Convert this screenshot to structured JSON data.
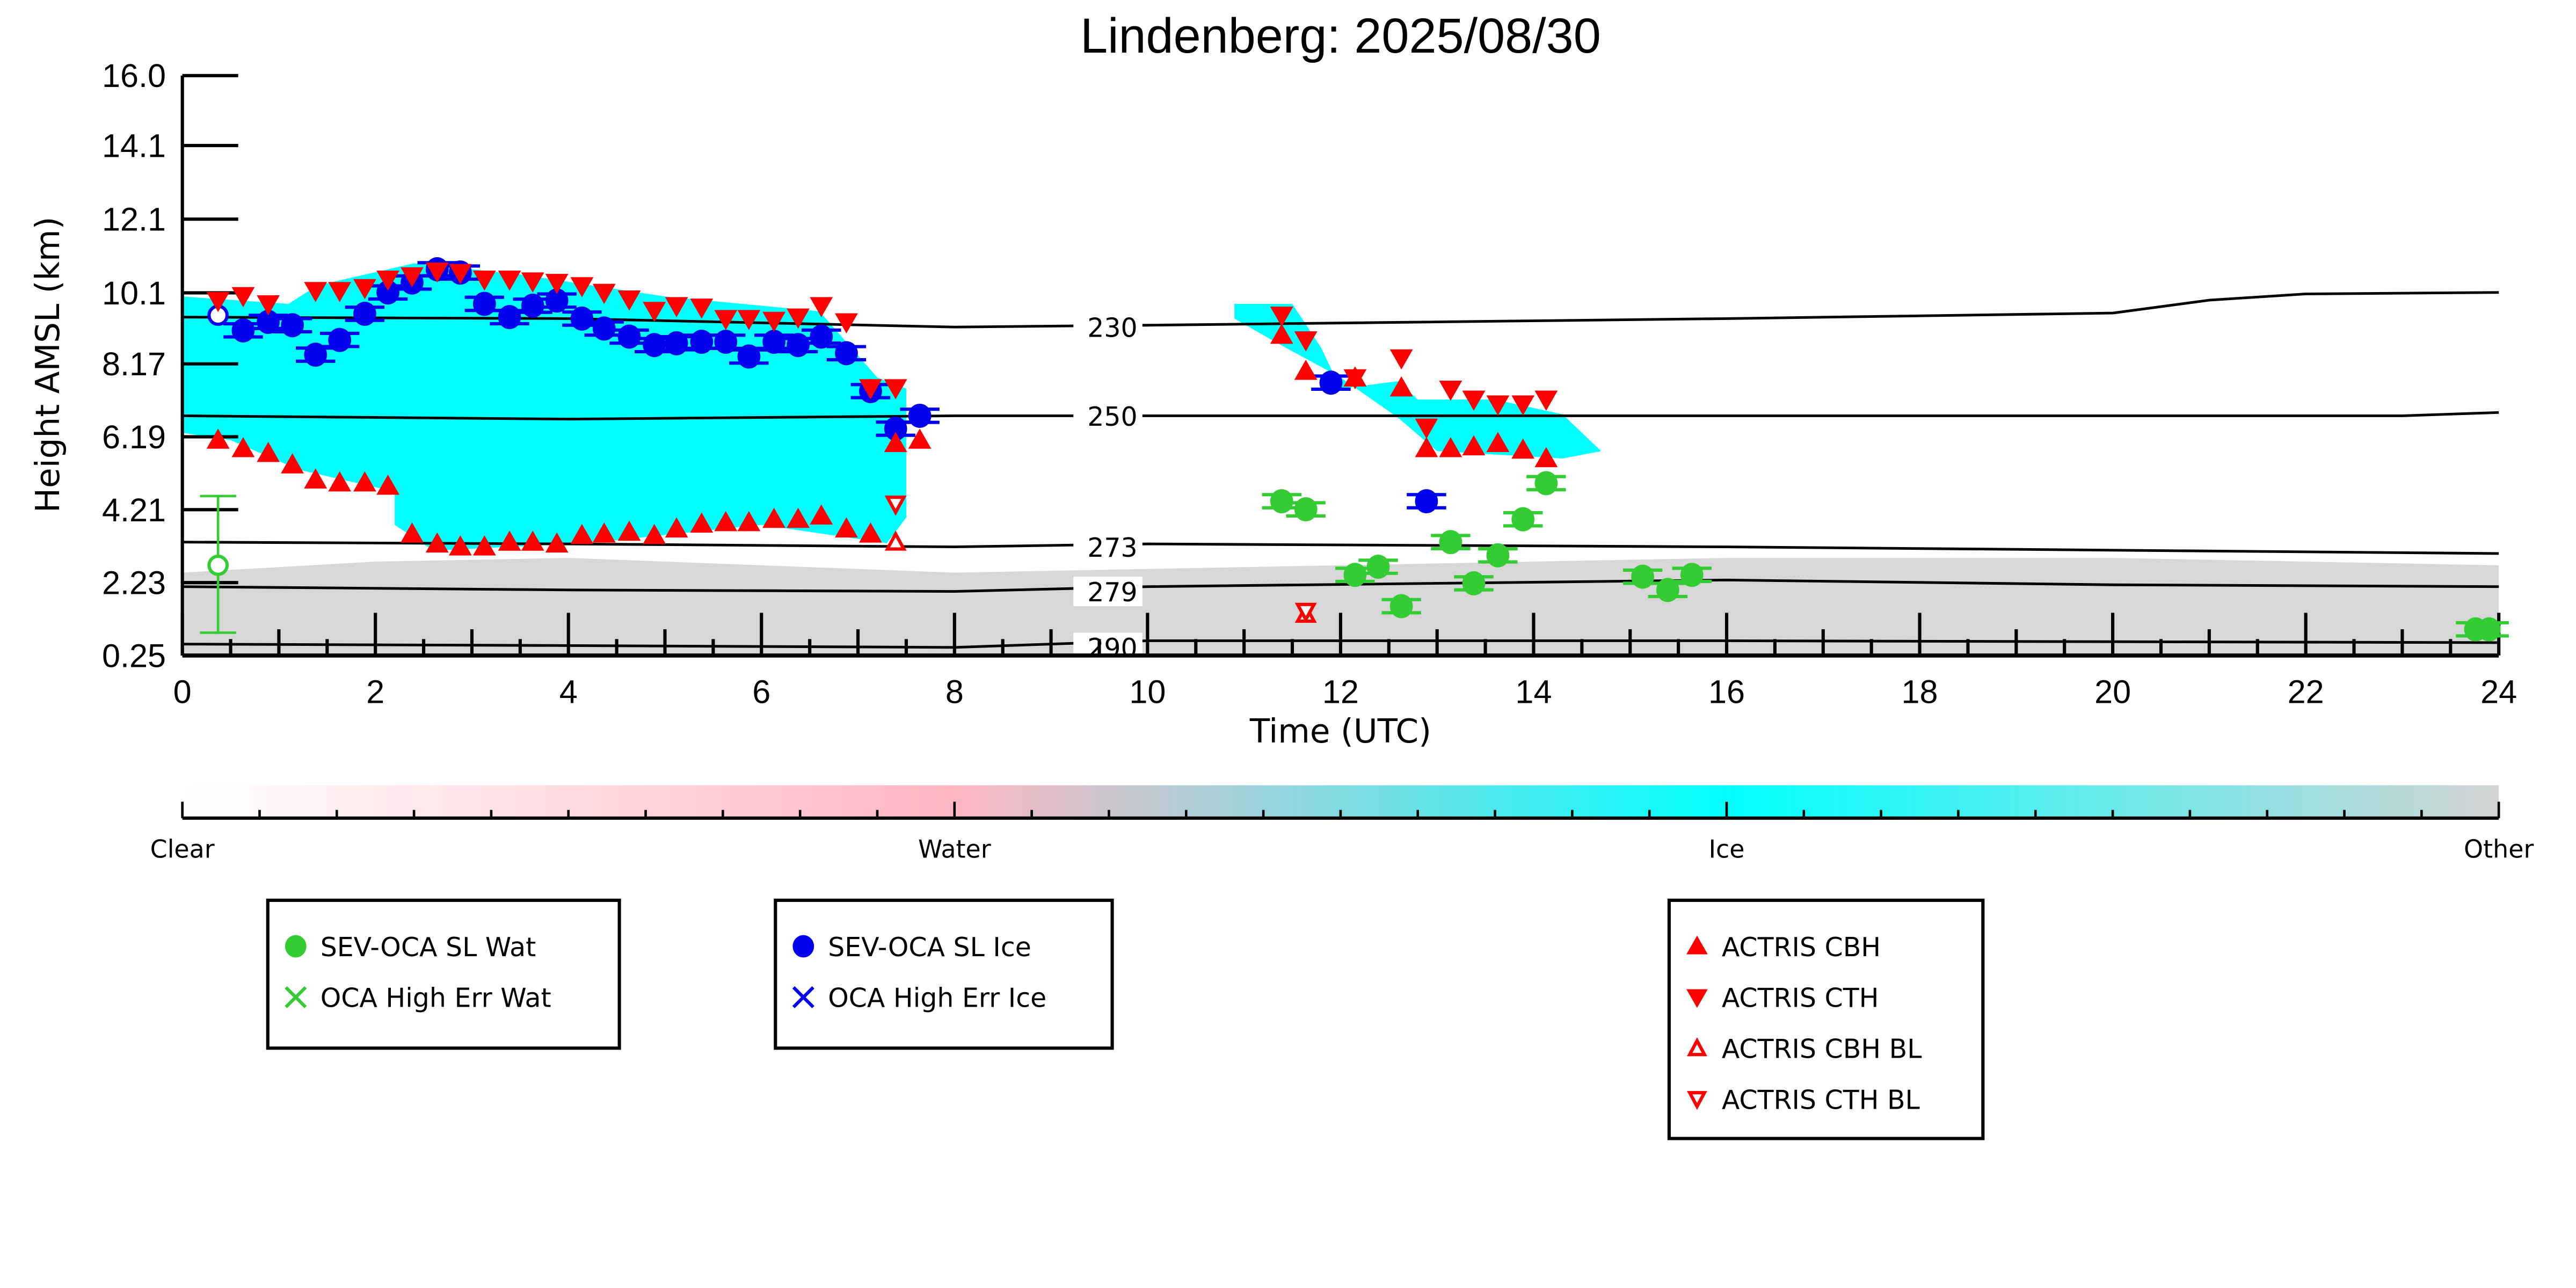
{
  "chart_data": {
    "type": "scatter",
    "title": "Lindenberg: 2025/08/30",
    "xlabel": "Time (UTC)",
    "ylabel": "Height AMSL (km)",
    "xlim": [
      0,
      24
    ],
    "ylim": [
      0.25,
      16.0
    ],
    "xticks": [
      "0",
      "2",
      "4",
      "6",
      "8",
      "10",
      "12",
      "14",
      "16",
      "18",
      "20",
      "22",
      "24"
    ],
    "yticks": [
      "0.25",
      "2.23",
      "4.21",
      "6.19",
      "8.17",
      "10.1",
      "12.1",
      "14.1",
      "16.0"
    ],
    "colors": {
      "wat": "#33cc33",
      "ice": "#0000ee",
      "actris": "#ff0000",
      "cloud_ice": "#00ffff",
      "cloud_water": "#ffb6c1",
      "other": "#d3d3d3"
    },
    "colorbar": {
      "labels": [
        "Clear",
        "Water",
        "Ice",
        "Other"
      ]
    },
    "temperature_contours": [
      {
        "label": "230",
        "points": [
          [
            0,
            9.44
          ],
          [
            4,
            9.4
          ],
          [
            8,
            9.17
          ],
          [
            10,
            9.22
          ],
          [
            16,
            9.4
          ],
          [
            20,
            9.55
          ],
          [
            21,
            9.9
          ],
          [
            22,
            10.07
          ],
          [
            24,
            10.11
          ]
        ]
      },
      {
        "label": "250",
        "points": [
          [
            0,
            6.76
          ],
          [
            4,
            6.67
          ],
          [
            8,
            6.76
          ],
          [
            16,
            6.76
          ],
          [
            23,
            6.76
          ],
          [
            24,
            6.85
          ]
        ]
      },
      {
        "label": "273",
        "points": [
          [
            0,
            3.33
          ],
          [
            4,
            3.28
          ],
          [
            8,
            3.2
          ],
          [
            10,
            3.28
          ],
          [
            16,
            3.2
          ],
          [
            24,
            3.02
          ]
        ]
      },
      {
        "label": "279",
        "points": [
          [
            0,
            2.12
          ],
          [
            4,
            2.03
          ],
          [
            8,
            1.99
          ],
          [
            10,
            2.12
          ],
          [
            16,
            2.3
          ],
          [
            20,
            2.17
          ],
          [
            24,
            2.12
          ]
        ]
      },
      {
        "label": "290",
        "points": [
          [
            0,
            0.56
          ],
          [
            4,
            0.52
          ],
          [
            8,
            0.47
          ],
          [
            10,
            0.65
          ],
          [
            16,
            0.65
          ],
          [
            24,
            0.6
          ]
        ]
      }
    ],
    "contour_label_partial": "290",
    "ice_cloud_regions": [
      [
        [
          0,
          10.0
        ],
        [
          1.1,
          9.8
        ],
        [
          1.4,
          10.3
        ],
        [
          2.4,
          10.9
        ],
        [
          3.5,
          10.6
        ],
        [
          5,
          10.0
        ],
        [
          6.6,
          9.6
        ],
        [
          7.2,
          7.8
        ],
        [
          7.5,
          7.5
        ],
        [
          7.5,
          4.0
        ],
        [
          7.3,
          3.3
        ],
        [
          6,
          3.8
        ],
        [
          4.2,
          3.3
        ],
        [
          2.6,
          3.1
        ],
        [
          2.2,
          3.8
        ],
        [
          2.2,
          4.7
        ],
        [
          1.2,
          5.3
        ],
        [
          0.5,
          6.1
        ],
        [
          0,
          6.3
        ]
      ],
      [
        [
          10.9,
          9.8
        ],
        [
          11.5,
          9.8
        ],
        [
          11.8,
          8.6
        ],
        [
          12.0,
          7.5
        ],
        [
          12.6,
          7.7
        ],
        [
          12.8,
          7.2
        ],
        [
          13.6,
          7.2
        ],
        [
          14.3,
          6.8
        ],
        [
          14.7,
          5.8
        ],
        [
          14.3,
          5.6
        ],
        [
          13.0,
          5.8
        ],
        [
          12.6,
          6.7
        ],
        [
          12.0,
          7.8
        ],
        [
          11.3,
          8.8
        ],
        [
          10.9,
          9.4
        ]
      ]
    ],
    "other_region": [
      [
        0,
        2.5
      ],
      [
        2,
        2.8
      ],
      [
        4,
        2.9
      ],
      [
        8,
        2.5
      ],
      [
        10,
        2.6
      ],
      [
        16,
        2.9
      ],
      [
        20,
        2.9
      ],
      [
        24,
        2.7
      ],
      [
        24,
        0.25
      ],
      [
        0,
        0.25
      ]
    ],
    "series": [
      {
        "name": "SEV-OCA SL Wat",
        "marker": "circle",
        "points": [
          [
            11.39,
            4.44
          ],
          [
            11.64,
            4.22
          ],
          [
            12.15,
            2.44
          ],
          [
            12.39,
            2.66
          ],
          [
            12.63,
            1.59
          ],
          [
            13.14,
            3.33
          ],
          [
            13.38,
            2.21
          ],
          [
            13.63,
            2.97
          ],
          [
            13.89,
            3.95
          ],
          [
            14.13,
            4.93
          ],
          [
            15.13,
            2.39
          ],
          [
            15.39,
            2.03
          ],
          [
            15.64,
            2.44
          ],
          [
            23.76,
            0.96
          ],
          [
            23.9,
            0.96
          ]
        ],
        "hollow_points": [
          [
            0.37,
            2.7,
            0.87,
            4.58
          ]
        ]
      },
      {
        "name": "OCA High Err Wat",
        "marker": "x",
        "points": []
      },
      {
        "name": "SEV-OCA SL Ice",
        "marker": "circle",
        "points": [
          [
            0.63,
            9.08
          ],
          [
            0.89,
            9.31
          ],
          [
            1.14,
            9.22
          ],
          [
            1.38,
            8.42
          ],
          [
            1.63,
            8.82
          ],
          [
            1.89,
            9.53
          ],
          [
            2.13,
            10.11
          ],
          [
            2.38,
            10.38
          ],
          [
            2.64,
            10.74
          ],
          [
            2.88,
            10.65
          ],
          [
            3.13,
            9.8
          ],
          [
            3.39,
            9.44
          ],
          [
            3.63,
            9.75
          ],
          [
            3.88,
            9.89
          ],
          [
            4.14,
            9.4
          ],
          [
            4.37,
            9.13
          ],
          [
            4.63,
            8.91
          ],
          [
            4.89,
            8.68
          ],
          [
            5.12,
            8.73
          ],
          [
            5.38,
            8.77
          ],
          [
            5.63,
            8.77
          ],
          [
            5.87,
            8.37
          ],
          [
            6.13,
            8.77
          ],
          [
            6.38,
            8.68
          ],
          [
            6.62,
            8.91
          ],
          [
            6.88,
            8.46
          ],
          [
            7.13,
            7.43
          ],
          [
            7.39,
            6.41
          ],
          [
            7.64,
            6.76
          ],
          [
            11.9,
            7.66
          ],
          [
            12.89,
            4.44
          ]
        ],
        "hollow_points": [
          [
            0.37,
            9.49
          ]
        ]
      },
      {
        "name": "OCA High Err Ice",
        "marker": "x",
        "points": []
      },
      {
        "name": "ACTRIS CBH",
        "marker": "triangle-up",
        "points": [
          [
            0.37,
            6.1
          ],
          [
            0.63,
            5.87
          ],
          [
            0.89,
            5.74
          ],
          [
            1.14,
            5.43
          ],
          [
            1.38,
            5.02
          ],
          [
            1.63,
            4.94
          ],
          [
            1.89,
            4.94
          ],
          [
            2.13,
            4.85
          ],
          [
            2.38,
            3.55
          ],
          [
            2.64,
            3.28
          ],
          [
            2.88,
            3.2
          ],
          [
            3.13,
            3.2
          ],
          [
            3.39,
            3.33
          ],
          [
            3.63,
            3.33
          ],
          [
            3.88,
            3.28
          ],
          [
            4.14,
            3.51
          ],
          [
            4.37,
            3.55
          ],
          [
            4.63,
            3.6
          ],
          [
            4.89,
            3.51
          ],
          [
            5.12,
            3.69
          ],
          [
            5.38,
            3.82
          ],
          [
            5.63,
            3.86
          ],
          [
            5.87,
            3.86
          ],
          [
            6.13,
            3.95
          ],
          [
            6.38,
            3.95
          ],
          [
            6.62,
            4.04
          ],
          [
            6.88,
            3.69
          ],
          [
            7.13,
            3.55
          ],
          [
            7.39,
            6.01
          ],
          [
            7.64,
            6.1
          ],
          [
            11.39,
            8.95
          ],
          [
            11.64,
            7.97
          ],
          [
            12.15,
            7.79
          ],
          [
            12.63,
            7.52
          ],
          [
            12.89,
            5.87
          ],
          [
            13.14,
            5.87
          ],
          [
            13.38,
            5.92
          ],
          [
            13.63,
            6.01
          ],
          [
            13.89,
            5.83
          ],
          [
            14.13,
            5.6
          ]
        ]
      },
      {
        "name": "ACTRIS CTH",
        "marker": "triangle-down",
        "points": [
          [
            0.37,
            9.89
          ],
          [
            0.63,
            10.02
          ],
          [
            0.89,
            9.8
          ],
          [
            1.38,
            10.16
          ],
          [
            1.63,
            10.16
          ],
          [
            1.89,
            10.24
          ],
          [
            2.13,
            10.47
          ],
          [
            2.38,
            10.56
          ],
          [
            2.64,
            10.69
          ],
          [
            2.88,
            10.65
          ],
          [
            3.13,
            10.47
          ],
          [
            3.39,
            10.47
          ],
          [
            3.63,
            10.42
          ],
          [
            3.88,
            10.38
          ],
          [
            4.14,
            10.29
          ],
          [
            4.37,
            10.11
          ],
          [
            4.63,
            9.93
          ],
          [
            4.89,
            9.62
          ],
          [
            5.12,
            9.75
          ],
          [
            5.38,
            9.71
          ],
          [
            5.63,
            9.4
          ],
          [
            5.87,
            9.4
          ],
          [
            6.13,
            9.35
          ],
          [
            6.38,
            9.44
          ],
          [
            6.62,
            9.75
          ],
          [
            6.88,
            9.31
          ],
          [
            7.13,
            7.52
          ],
          [
            7.39,
            7.52
          ],
          [
            11.39,
            9.49
          ],
          [
            11.64,
            8.82
          ],
          [
            12.15,
            7.79
          ],
          [
            12.63,
            8.33
          ],
          [
            12.89,
            6.45
          ],
          [
            13.14,
            7.48
          ],
          [
            13.38,
            7.21
          ],
          [
            13.63,
            7.08
          ],
          [
            13.89,
            7.08
          ],
          [
            14.13,
            7.21
          ]
        ]
      },
      {
        "name": "ACTRIS CBH BL",
        "marker": "triangle-up-open",
        "points": [
          [
            7.39,
            3.33
          ],
          [
            11.64,
            1.37
          ]
        ]
      },
      {
        "name": "ACTRIS CTH BL",
        "marker": "triangle-down-open",
        "points": [
          [
            7.39,
            4.36
          ],
          [
            11.64,
            1.45
          ]
        ]
      }
    ]
  }
}
